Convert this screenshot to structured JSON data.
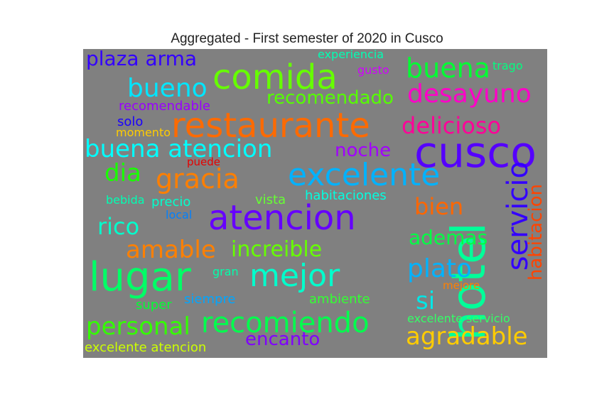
{
  "chart_data": {
    "type": "wordcloud",
    "title": "Aggregated - First semester of 2020 in Cusco",
    "background_color": "#808080",
    "words": [
      {
        "text": "hotel",
        "color": "#00ff99",
        "orientation": "vertical"
      },
      {
        "text": "cusco",
        "color": "#5500ff",
        "orientation": "horizontal"
      },
      {
        "text": "lugar",
        "color": "#00ff66",
        "orientation": "horizontal"
      },
      {
        "text": "restaurante",
        "color": "#ff6a00",
        "orientation": "horizontal"
      },
      {
        "text": "excelente",
        "color": "#00b2ff",
        "orientation": "horizontal"
      },
      {
        "text": "atencion",
        "color": "#6600ff",
        "orientation": "horizontal"
      },
      {
        "text": "comida",
        "color": "#66ff00",
        "orientation": "horizontal"
      },
      {
        "text": "servicio",
        "color": "#3300ff",
        "orientation": "vertical"
      },
      {
        "text": "mejor",
        "color": "#00ffcc",
        "orientation": "horizontal"
      },
      {
        "text": "recomiendo",
        "color": "#00ff4d",
        "orientation": "horizontal"
      },
      {
        "text": "gracia",
        "color": "#ff7f00",
        "orientation": "horizontal"
      },
      {
        "text": "desayuno",
        "color": "#ff00c8",
        "orientation": "horizontal"
      },
      {
        "text": "buena",
        "color": "#00ff33",
        "orientation": "horizontal"
      },
      {
        "text": "bueno",
        "color": "#00e6ff",
        "orientation": "horizontal"
      },
      {
        "text": "delicioso",
        "color": "#ff0099",
        "orientation": "horizontal"
      },
      {
        "text": "buena atencion",
        "color": "#00ffff",
        "orientation": "horizontal"
      },
      {
        "text": "plato",
        "color": "#00b3ff",
        "orientation": "horizontal"
      },
      {
        "text": "agradable",
        "color": "#ffcc00",
        "orientation": "horizontal"
      },
      {
        "text": "personal",
        "color": "#33ff00",
        "orientation": "horizontal"
      },
      {
        "text": "amable",
        "color": "#ff8000",
        "orientation": "horizontal"
      },
      {
        "text": "increible",
        "color": "#66ff00",
        "orientation": "horizontal"
      },
      {
        "text": "habitacion",
        "color": "#ff4400",
        "orientation": "vertical"
      },
      {
        "text": "dia",
        "color": "#19ff00",
        "orientation": "horizontal"
      },
      {
        "text": "rico",
        "color": "#00ffcc",
        "orientation": "horizontal"
      },
      {
        "text": "bien",
        "color": "#ff6600",
        "orientation": "horizontal"
      },
      {
        "text": "plaza arma",
        "color": "#3300ff",
        "orientation": "horizontal"
      },
      {
        "text": "recomendado",
        "color": "#55ff00",
        "orientation": "horizontal"
      },
      {
        "text": "noche",
        "color": "#a200ff",
        "orientation": "horizontal"
      },
      {
        "text": "ademas",
        "color": "#00ff44",
        "orientation": "horizontal"
      },
      {
        "text": "si",
        "color": "#00e6e6",
        "orientation": "horizontal"
      },
      {
        "text": "encanto",
        "color": "#8000ff",
        "orientation": "horizontal"
      },
      {
        "text": "excelente atencion",
        "color": "#ccff00",
        "orientation": "horizontal"
      },
      {
        "text": "experiencia",
        "color": "#00ffb3",
        "orientation": "horizontal"
      },
      {
        "text": "gusto",
        "color": "#d100ff",
        "orientation": "horizontal"
      },
      {
        "text": "trago",
        "color": "#00ff80",
        "orientation": "horizontal"
      },
      {
        "text": "recomendable",
        "color": "#9900ff",
        "orientation": "horizontal"
      },
      {
        "text": "solo",
        "color": "#1a00ff",
        "orientation": "horizontal"
      },
      {
        "text": "momento",
        "color": "#ffcc00",
        "orientation": "horizontal"
      },
      {
        "text": "puede",
        "color": "#e60000",
        "orientation": "horizontal"
      },
      {
        "text": "habitaciones",
        "color": "#00ffe0",
        "orientation": "horizontal"
      },
      {
        "text": "vista",
        "color": "#66ff33",
        "orientation": "horizontal"
      },
      {
        "text": "precio",
        "color": "#00ffcc",
        "orientation": "horizontal"
      },
      {
        "text": "bebida",
        "color": "#00ffb3",
        "orientation": "horizontal"
      },
      {
        "text": "local",
        "color": "#0080ff",
        "orientation": "horizontal"
      },
      {
        "text": "gran",
        "color": "#00ffaa",
        "orientation": "horizontal"
      },
      {
        "text": "siempre",
        "color": "#00a6ff",
        "orientation": "horizontal"
      },
      {
        "text": "super",
        "color": "#00ff33",
        "orientation": "horizontal"
      },
      {
        "text": "ambiente",
        "color": "#33ff33",
        "orientation": "horizontal"
      },
      {
        "text": "mejore",
        "color": "#ff8000",
        "orientation": "horizontal"
      },
      {
        "text": "excelente servicio",
        "color": "#33ff66",
        "orientation": "horizontal"
      }
    ]
  }
}
